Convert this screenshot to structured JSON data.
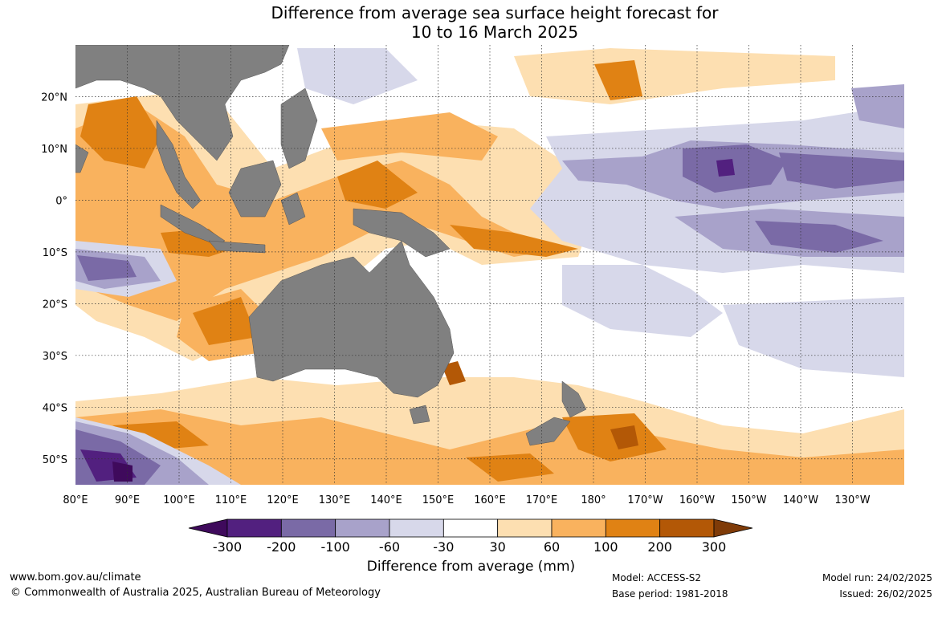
{
  "title": {
    "line1": "Difference from average sea surface height forecast for",
    "line2": "10 to 16 March 2025"
  },
  "map": {
    "lat_labels": [
      "20°N",
      "10°N",
      "0°",
      "10°S",
      "20°S",
      "30°S",
      "40°S",
      "50°S"
    ],
    "lat_values": [
      20,
      10,
      0,
      -10,
      -20,
      -30,
      -40,
      -50
    ],
    "lon_labels": [
      "80°E",
      "90°E",
      "100°E",
      "110°E",
      "120°E",
      "130°E",
      "140°E",
      "150°E",
      "160°E",
      "170°E",
      "180°",
      "170°W",
      "160°W",
      "150°W",
      "140°W",
      "130°W"
    ],
    "lon_values": [
      80,
      90,
      100,
      110,
      120,
      130,
      140,
      150,
      160,
      170,
      180,
      190,
      200,
      210,
      220,
      230
    ],
    "lon_range": [
      80,
      240
    ],
    "lat_range": [
      -55,
      30
    ],
    "land_color": "#808080",
    "grid": "dotted"
  },
  "colorbar": {
    "title": "Difference from average (mm)",
    "ticks": [
      "-300",
      "-200",
      "-100",
      "-60",
      "-30",
      "30",
      "60",
      "100",
      "200",
      "300"
    ],
    "colors": [
      "#3f0a5c",
      "#52207f",
      "#7a6aa6",
      "#a8a2ca",
      "#d7d8ea",
      "#ffffff",
      "#fddfb1",
      "#f9b25e",
      "#e08214",
      "#b35806",
      "#7f3b08"
    ]
  },
  "footer": {
    "website": "www.bom.gov.au/climate",
    "copyright": "© Commonwealth of Australia 2025, Australian Bureau of Meteorology",
    "model": "Model: ACCESS-S2",
    "base_period": "Base period: 1981-2018",
    "model_run": "Model run: 24/02/2025",
    "issued": "Issued: 26/02/2025"
  }
}
